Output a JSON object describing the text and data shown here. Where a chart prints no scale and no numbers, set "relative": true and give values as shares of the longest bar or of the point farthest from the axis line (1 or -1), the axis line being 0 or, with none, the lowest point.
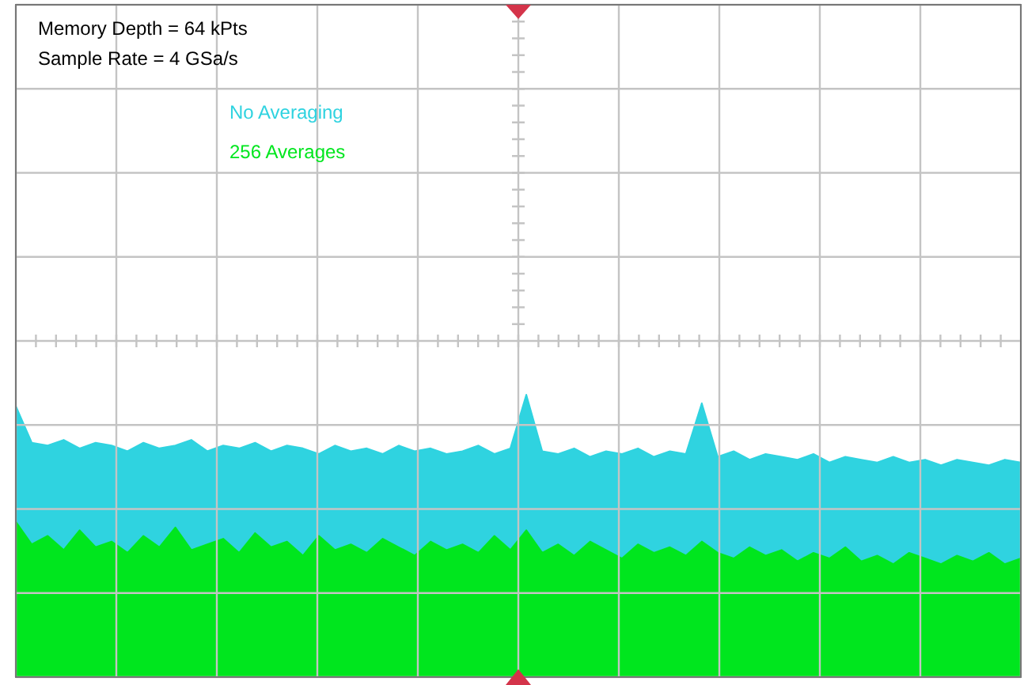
{
  "chart_data": {
    "type": "area",
    "relative": true,
    "grid": true,
    "legend": "top left",
    "annotations": [
      "Memory Depth = 64 kPts",
      "Sample Rate = 4 GSa/s"
    ],
    "categories": [
      null,
      null,
      null,
      null,
      null,
      null,
      null,
      null,
      null,
      null,
      null,
      null,
      null,
      null,
      null,
      null,
      null,
      null,
      null,
      null,
      null,
      null,
      null,
      null,
      null,
      null,
      null,
      null,
      null,
      null,
      null,
      null,
      null,
      null,
      null,
      null,
      null,
      null,
      null,
      null,
      null,
      null,
      null,
      null,
      null,
      null,
      null,
      null,
      null,
      null,
      null,
      null,
      null,
      null,
      null,
      null,
      null,
      null,
      null,
      null,
      null,
      null,
      null,
      null
    ],
    "series": [
      {
        "name": "No Averaging",
        "color": "#2fd3e0",
        "values": [
          0.96,
          0.83,
          0.82,
          0.84,
          0.81,
          0.83,
          0.82,
          0.8,
          0.83,
          0.81,
          0.82,
          0.84,
          0.8,
          0.82,
          0.81,
          0.83,
          0.8,
          0.82,
          0.81,
          0.79,
          0.82,
          0.8,
          0.81,
          0.79,
          0.82,
          0.8,
          0.81,
          0.79,
          0.8,
          0.82,
          0.79,
          0.81,
          1.0,
          0.8,
          0.79,
          0.81,
          0.78,
          0.8,
          0.79,
          0.81,
          0.78,
          0.8,
          0.79,
          0.97,
          0.78,
          0.8,
          0.77,
          0.79,
          0.78,
          0.77,
          0.79,
          0.76,
          0.78,
          0.77,
          0.76,
          0.78,
          0.76,
          0.77,
          0.75,
          0.77,
          0.76,
          0.75,
          0.77,
          0.76
        ]
      },
      {
        "name": "256 Averages",
        "color": "#00e61e",
        "values": [
          0.55,
          0.47,
          0.5,
          0.45,
          0.52,
          0.46,
          0.48,
          0.44,
          0.5,
          0.46,
          0.53,
          0.45,
          0.47,
          0.49,
          0.44,
          0.51,
          0.46,
          0.48,
          0.43,
          0.5,
          0.45,
          0.47,
          0.44,
          0.49,
          0.46,
          0.43,
          0.48,
          0.45,
          0.47,
          0.44,
          0.5,
          0.45,
          0.52,
          0.44,
          0.47,
          0.43,
          0.48,
          0.45,
          0.42,
          0.47,
          0.44,
          0.46,
          0.43,
          0.48,
          0.44,
          0.42,
          0.46,
          0.43,
          0.45,
          0.41,
          0.44,
          0.42,
          0.46,
          0.41,
          0.43,
          0.4,
          0.44,
          0.42,
          0.4,
          0.43,
          0.41,
          0.44,
          0.4,
          0.42
        ]
      }
    ]
  }
}
